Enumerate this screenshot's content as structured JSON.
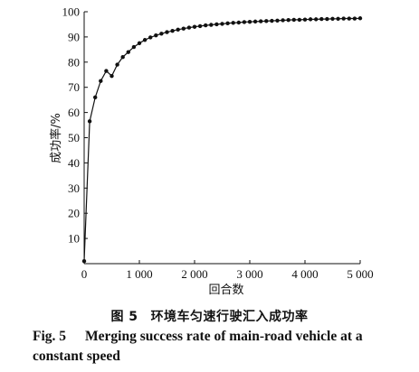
{
  "chart_data": {
    "type": "line",
    "title": "",
    "xlabel": "回合数",
    "ylabel": "成功率/%",
    "xlim": [
      0,
      5000
    ],
    "ylim": [
      0,
      100
    ],
    "x_ticks": [
      0,
      1000,
      2000,
      3000,
      4000,
      5000
    ],
    "x_tick_labels": [
      "0",
      "1 000",
      "2 000",
      "3 000",
      "4 000",
      "5 000"
    ],
    "y_ticks": [
      10,
      20,
      30,
      40,
      50,
      60,
      70,
      80,
      90,
      100
    ],
    "y_tick_labels": [
      "10",
      "20",
      "30",
      "40",
      "50",
      "60",
      "70",
      "80",
      "90",
      "100"
    ],
    "grid": false,
    "series": [
      {
        "x": [
          0,
          100,
          200,
          300,
          400,
          500,
          600,
          700,
          800,
          900,
          1000,
          1100,
          1200,
          1300,
          1400,
          1500,
          1600,
          1700,
          1800,
          1900,
          2000,
          2100,
          2200,
          2300,
          2400,
          2500,
          2600,
          2700,
          2800,
          2900,
          3000,
          3100,
          3200,
          3300,
          3400,
          3500,
          3600,
          3700,
          3800,
          3900,
          4000,
          4100,
          4200,
          4300,
          4400,
          4500,
          4600,
          4700,
          4800,
          4900,
          5000
        ],
        "values": [
          1,
          56.5,
          66,
          72.5,
          76.5,
          74.5,
          79,
          82,
          84,
          86,
          87.5,
          88.8,
          89.8,
          90.6,
          91.3,
          91.9,
          92.4,
          92.9,
          93.3,
          93.7,
          94,
          94.3,
          94.6,
          94.8,
          95,
          95.2,
          95.4,
          95.6,
          95.7,
          95.9,
          96,
          96.1,
          96.2,
          96.3,
          96.4,
          96.5,
          96.6,
          96.7,
          96.8,
          96.8,
          96.9,
          97,
          97,
          97.1,
          97.1,
          97.2,
          97.2,
          97.3,
          97.3,
          97.3,
          97.4
        ]
      }
    ]
  },
  "caption": {
    "cn_label": "图 5",
    "cn_text": "环境车匀速行驶汇入成功率",
    "en_label": "Fig. 5",
    "en_text": "Merging success rate of main-road vehicle at a constant speed"
  }
}
